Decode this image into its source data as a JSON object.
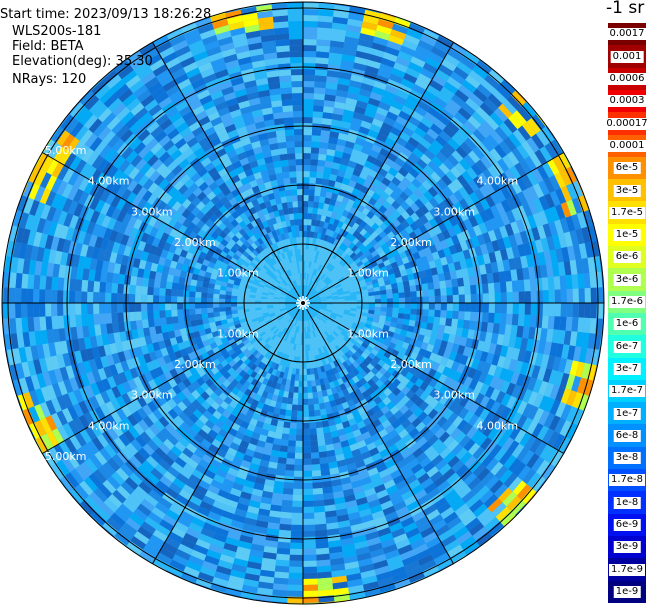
{
  "info": {
    "start_time": "Start time: 2023/09/13 18:26:28",
    "instrument": "WLS200s-181",
    "field": "Field: BETA",
    "elevation": "Elevation(deg): 35.30",
    "nrays": "NRays: 120"
  },
  "ppi": {
    "ring_labels": [
      "1.00km",
      "2.00km",
      "3.00km",
      "4.00km",
      "5.00km"
    ],
    "ray_count": 120
  },
  "legend": {
    "unit": "-1 sr",
    "entries": [
      {
        "label": "0.0017",
        "color": "#7a0000"
      },
      {
        "label": "0.001",
        "color": "#a00000"
      },
      {
        "label": "0.0006",
        "color": "#c80000"
      },
      {
        "label": "0.0003",
        "color": "#f00000"
      },
      {
        "label": "0.00017",
        "color": "#ff3000"
      },
      {
        "label": "0.0001",
        "color": "#ff6000"
      },
      {
        "label": "6e-5",
        "color": "#ff9000"
      },
      {
        "label": "3e-5",
        "color": "#ffc000"
      },
      {
        "label": "1.7e-5",
        "color": "#ffe000"
      },
      {
        "label": "1e-5",
        "color": "#ffff00"
      },
      {
        "label": "6e-6",
        "color": "#e0ff20"
      },
      {
        "label": "3e-6",
        "color": "#b0ff50"
      },
      {
        "label": "1.7e-6",
        "color": "#80ff80"
      },
      {
        "label": "1e-6",
        "color": "#50ffb0"
      },
      {
        "label": "6e-7",
        "color": "#20ffe0"
      },
      {
        "label": "3e-7",
        "color": "#00f0ff"
      },
      {
        "label": "1.7e-7",
        "color": "#00d0ff"
      },
      {
        "label": "1e-7",
        "color": "#00b0ff"
      },
      {
        "label": "6e-8",
        "color": "#0090ff"
      },
      {
        "label": "3e-8",
        "color": "#0070ff"
      },
      {
        "label": "1.7e-8",
        "color": "#0050ff"
      },
      {
        "label": "1e-8",
        "color": "#0030ff"
      },
      {
        "label": "6e-9",
        "color": "#0010f0"
      },
      {
        "label": "3e-9",
        "color": "#0000d0"
      },
      {
        "label": "1.7e-9",
        "color": "#0000a0"
      },
      {
        "label": "1e-9",
        "color": "#000080"
      }
    ]
  }
}
